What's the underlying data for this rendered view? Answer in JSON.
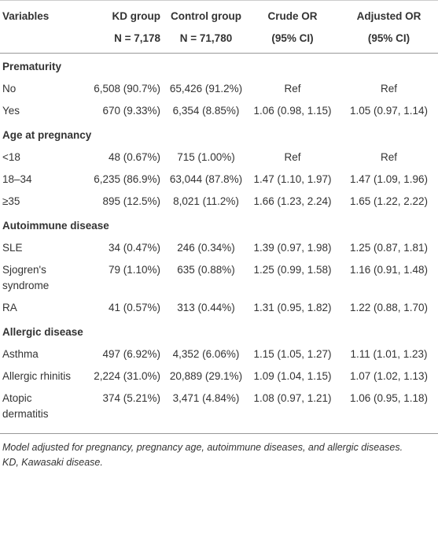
{
  "table": {
    "columns": [
      "Variables",
      "KD group",
      "Control group",
      "Crude OR",
      "Adjusted OR"
    ],
    "subheaders": [
      "N = 7,178",
      "N = 71,780",
      "(95% CI)",
      "(95% CI)"
    ],
    "sections": [
      {
        "title": "Prematurity",
        "rows": [
          [
            "No",
            "6,508 (90.7%)",
            "65,426 (91.2%)",
            "Ref",
            "Ref"
          ],
          [
            "Yes",
            "670 (9.33%)",
            "6,354 (8.85%)",
            "1.06 (0.98, 1.15)",
            "1.05 (0.97, 1.14)"
          ]
        ]
      },
      {
        "title": "Age at pregnancy",
        "rows": [
          [
            "<18",
            "48 (0.67%)",
            "715 (1.00%)",
            "Ref",
            "Ref"
          ],
          [
            "18–34",
            "6,235 (86.9%)",
            "63,044 (87.8%)",
            "1.47 (1.10, 1.97)",
            "1.47 (1.09, 1.96)"
          ],
          [
            "≥35",
            "895 (12.5%)",
            "8,021 (11.2%)",
            "1.66 (1.23, 2.24)",
            "1.65 (1.22, 2.22)"
          ]
        ]
      },
      {
        "title": "Autoimmune disease",
        "rows": [
          [
            "SLE",
            "34 (0.47%)",
            "246 (0.34%)",
            "1.39 (0.97, 1.98)",
            "1.25 (0.87, 1.81)"
          ],
          [
            "Sjogren's syndrome",
            "79 (1.10%)",
            "635 (0.88%)",
            "1.25 (0.99, 1.58)",
            "1.16 (0.91, 1.48)"
          ],
          [
            "RA",
            "41 (0.57%)",
            "313 (0.44%)",
            "1.31 (0.95, 1.82)",
            "1.22 (0.88, 1.70)"
          ]
        ]
      },
      {
        "title": "Allergic disease",
        "rows": [
          [
            "Asthma",
            "497 (6.92%)",
            "4,352 (6.06%)",
            "1.15 (1.05, 1.27)",
            "1.11 (1.01, 1.23)"
          ],
          [
            "Allergic rhinitis",
            "2,224 (31.0%)",
            "20,889 (29.1%)",
            "1.09 (1.04, 1.15)",
            "1.07 (1.02, 1.13)"
          ],
          [
            "Atopic dermatitis",
            "374 (5.21%)",
            "3,471 (4.84%)",
            "1.08 (0.97, 1.21)",
            "1.06 (0.95, 1.18)"
          ]
        ]
      }
    ],
    "notes": [
      "Model adjusted for pregnancy, pregnancy age, autoimmune diseases, and allergic diseases.",
      "KD, Kawasaki disease."
    ]
  }
}
